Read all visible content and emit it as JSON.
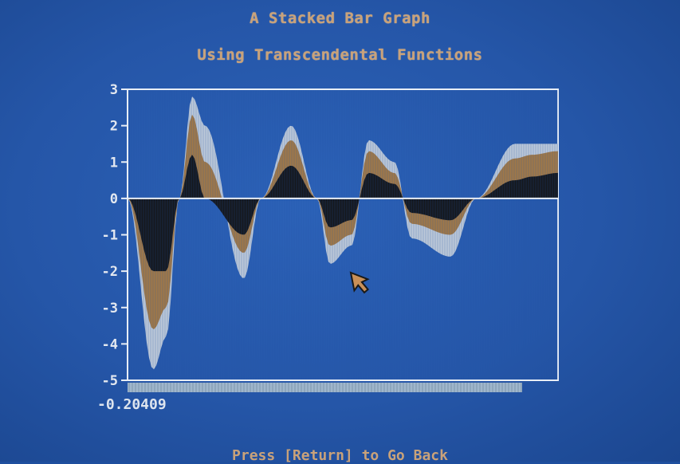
{
  "header": {
    "title": "A Stacked Bar Graph",
    "subtitle": "Using Transcendental Functions"
  },
  "footer": {
    "prompt": "Press [Return] to Go Back"
  },
  "readout": {
    "x_value": "-0.20409"
  },
  "colors": {
    "background": "#2556a8",
    "series_dark": "#15181d",
    "series_tan": "#a07848",
    "series_light": "#bcc8d8",
    "frame": "#e8eef6",
    "scrollbar": "#9fb6cc"
  },
  "icons": {
    "pointer": "arrow-cursor-icon"
  },
  "chart_data": {
    "type": "bar",
    "stacked": true,
    "title": "A Stacked Bar Graph",
    "subtitle": "Using Transcendental Functions",
    "ylim": [
      -5,
      3
    ],
    "yticks": [
      3,
      2,
      1,
      0,
      -1,
      -2,
      -3,
      -4,
      -5
    ],
    "grid": false,
    "series": [
      {
        "color": "#15181d",
        "points": [
          [
            0,
            0
          ],
          [
            0.06,
            -2.0
          ],
          [
            0.09,
            -2.0
          ],
          [
            0.12,
            0
          ],
          [
            0.15,
            1.2
          ],
          [
            0.18,
            0
          ],
          [
            0.27,
            -1.0
          ],
          [
            0.31,
            0
          ],
          [
            0.38,
            0.9
          ],
          [
            0.44,
            0
          ],
          [
            0.47,
            -0.8
          ],
          [
            0.52,
            -0.6
          ],
          [
            0.56,
            0.7
          ],
          [
            0.62,
            0.4
          ],
          [
            0.66,
            -0.4
          ],
          [
            0.75,
            -0.6
          ],
          [
            0.81,
            0
          ],
          [
            0.9,
            0.5
          ],
          [
            0.94,
            0.6
          ],
          [
            1,
            0.7
          ]
        ]
      },
      {
        "color": "#a07848",
        "points": [
          [
            0,
            0
          ],
          [
            0.06,
            -3.6
          ],
          [
            0.09,
            -3.0
          ],
          [
            0.12,
            0
          ],
          [
            0.15,
            2.3
          ],
          [
            0.18,
            1.0
          ],
          [
            0.27,
            -1.5
          ],
          [
            0.31,
            0
          ],
          [
            0.38,
            1.6
          ],
          [
            0.44,
            0
          ],
          [
            0.47,
            -1.3
          ],
          [
            0.52,
            -1.0
          ],
          [
            0.56,
            1.3
          ],
          [
            0.62,
            0.7
          ],
          [
            0.66,
            -0.7
          ],
          [
            0.75,
            -1.0
          ],
          [
            0.81,
            0
          ],
          [
            0.9,
            1.1
          ],
          [
            0.94,
            1.2
          ],
          [
            1,
            1.3
          ]
        ]
      },
      {
        "color": "#bcc8d8",
        "points": [
          [
            0,
            0
          ],
          [
            0.06,
            -4.7
          ],
          [
            0.09,
            -3.8
          ],
          [
            0.12,
            0
          ],
          [
            0.15,
            2.8
          ],
          [
            0.18,
            2.0
          ],
          [
            0.27,
            -2.2
          ],
          [
            0.31,
            0
          ],
          [
            0.38,
            2.0
          ],
          [
            0.44,
            0
          ],
          [
            0.47,
            -1.8
          ],
          [
            0.52,
            -1.3
          ],
          [
            0.56,
            1.6
          ],
          [
            0.62,
            1.0
          ],
          [
            0.66,
            -1.1
          ],
          [
            0.75,
            -1.6
          ],
          [
            0.81,
            0
          ],
          [
            0.9,
            1.5
          ],
          [
            0.94,
            1.5
          ],
          [
            1,
            1.5
          ]
        ]
      }
    ]
  }
}
